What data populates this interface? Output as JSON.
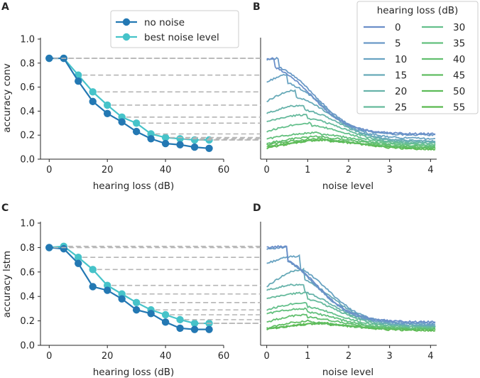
{
  "chart_data": [
    {
      "type": "line",
      "panel": "A",
      "xlabel": "hearing loss (dB)",
      "ylabel": "accuracy conv",
      "xlim": [
        -3,
        60
      ],
      "ylim": [
        0,
        1.0
      ],
      "xticks": [
        0,
        20,
        40,
        60
      ],
      "yticks": [
        0.0,
        0.2,
        0.4,
        0.6,
        0.8,
        1.0
      ],
      "x": [
        0,
        5,
        10,
        15,
        20,
        25,
        30,
        35,
        40,
        45,
        50,
        55
      ],
      "series": [
        {
          "name": "no noise",
          "color": "#2378b3",
          "values": [
            0.84,
            0.84,
            0.65,
            0.48,
            0.38,
            0.31,
            0.23,
            0.17,
            0.13,
            0.12,
            0.1,
            0.09
          ]
        },
        {
          "name": "best noise level",
          "color": "#46c3c9",
          "values": [
            0.84,
            0.84,
            0.7,
            0.56,
            0.45,
            0.35,
            0.3,
            0.21,
            0.18,
            0.17,
            0.16,
            0.16
          ]
        }
      ],
      "legend": {
        "location": "top-right",
        "entries": [
          "no noise",
          "best noise level"
        ]
      }
    },
    {
      "type": "line",
      "panel": "B",
      "xlabel": "noise level",
      "xlim": [
        -0.15,
        4.15
      ],
      "ylim": [
        0,
        1.0
      ],
      "xticks": [
        0,
        1,
        2,
        3,
        4
      ],
      "legend": {
        "title": "hearing loss (dB)",
        "location": "top-right",
        "entries": [
          "0",
          "5",
          "10",
          "15",
          "20",
          "25",
          "30",
          "35",
          "40",
          "45",
          "50",
          "55"
        ]
      },
      "colors": [
        "#6b8fc9",
        "#6a99c6",
        "#69a3c2",
        "#68aab8",
        "#67b3aa",
        "#66ba9c",
        "#65c08c",
        "#63c07d",
        "#62bf6f",
        "#60bd62",
        "#5dbb58",
        "#5ab94f"
      ],
      "curves": [
        {
          "hearing_loss": 0,
          "base": 0.83,
          "peak_at": 0.2,
          "peak": 0.84,
          "end": 0.21
        },
        {
          "hearing_loss": 5,
          "base": 0.83,
          "peak_at": 0.3,
          "peak": 0.84,
          "end": 0.2
        },
        {
          "hearing_loss": 10,
          "base": 0.64,
          "peak_at": 0.5,
          "peak": 0.7,
          "end": 0.17
        },
        {
          "hearing_loss": 15,
          "base": 0.48,
          "peak_at": 0.7,
          "peak": 0.57,
          "end": 0.15
        },
        {
          "hearing_loss": 20,
          "base": 0.38,
          "peak_at": 0.9,
          "peak": 0.45,
          "end": 0.14
        },
        {
          "hearing_loss": 25,
          "base": 0.31,
          "peak_at": 1.0,
          "peak": 0.37,
          "end": 0.13
        },
        {
          "hearing_loss": 30,
          "base": 0.23,
          "peak_at": 1.1,
          "peak": 0.3,
          "end": 0.12
        },
        {
          "hearing_loss": 35,
          "base": 0.17,
          "peak_at": 1.3,
          "peak": 0.22,
          "end": 0.11
        },
        {
          "hearing_loss": 40,
          "base": 0.13,
          "peak_at": 1.4,
          "peak": 0.19,
          "end": 0.1
        },
        {
          "hearing_loss": 45,
          "base": 0.12,
          "peak_at": 1.4,
          "peak": 0.17,
          "end": 0.09
        },
        {
          "hearing_loss": 50,
          "base": 0.1,
          "peak_at": 1.5,
          "peak": 0.16,
          "end": 0.09
        },
        {
          "hearing_loss": 55,
          "base": 0.09,
          "peak_at": 1.5,
          "peak": 0.16,
          "end": 0.08
        }
      ]
    },
    {
      "type": "line",
      "panel": "C",
      "xlabel": "hearing loss (dB)",
      "ylabel": "accuracy lstm",
      "xlim": [
        -3,
        60
      ],
      "ylim": [
        0,
        1.0
      ],
      "xticks": [
        0,
        20,
        40,
        60
      ],
      "yticks": [
        0.0,
        0.2,
        0.4,
        0.6,
        0.8,
        1.0
      ],
      "x": [
        0,
        5,
        10,
        15,
        20,
        25,
        30,
        35,
        40,
        45,
        50,
        55
      ],
      "series": [
        {
          "name": "no noise",
          "color": "#2378b3",
          "values": [
            0.8,
            0.79,
            0.67,
            0.48,
            0.45,
            0.38,
            0.29,
            0.26,
            0.19,
            0.14,
            0.13,
            0.13
          ]
        },
        {
          "name": "best noise level",
          "color": "#46c3c9",
          "values": [
            0.8,
            0.81,
            0.72,
            0.62,
            0.49,
            0.42,
            0.35,
            0.29,
            0.25,
            0.21,
            0.18,
            0.18
          ]
        }
      ]
    },
    {
      "type": "line",
      "panel": "D",
      "xlabel": "noise level",
      "xlim": [
        -0.15,
        4.15
      ],
      "ylim": [
        0,
        1.0
      ],
      "xticks": [
        0,
        1,
        2,
        3,
        4
      ],
      "colors": [
        "#6b8fc9",
        "#6a99c6",
        "#69a3c2",
        "#68aab8",
        "#67b3aa",
        "#66ba9c",
        "#65c08c",
        "#63c07d",
        "#62bf6f",
        "#60bd62",
        "#5dbb58",
        "#5ab94f"
      ],
      "curves": [
        {
          "hearing_loss": 0,
          "base": 0.8,
          "peak_at": 0.5,
          "peak": 0.81,
          "end": 0.19
        },
        {
          "hearing_loss": 5,
          "base": 0.79,
          "peak_at": 0.5,
          "peak": 0.8,
          "end": 0.18
        },
        {
          "hearing_loss": 10,
          "base": 0.67,
          "peak_at": 0.8,
          "peak": 0.73,
          "end": 0.17
        },
        {
          "hearing_loss": 15,
          "base": 0.48,
          "peak_at": 0.9,
          "peak": 0.62,
          "end": 0.16
        },
        {
          "hearing_loss": 20,
          "base": 0.45,
          "peak_at": 0.9,
          "peak": 0.5,
          "end": 0.16
        },
        {
          "hearing_loss": 25,
          "base": 0.38,
          "peak_at": 1.0,
          "peak": 0.43,
          "end": 0.15
        },
        {
          "hearing_loss": 30,
          "base": 0.29,
          "peak_at": 1.0,
          "peak": 0.35,
          "end": 0.15
        },
        {
          "hearing_loss": 35,
          "base": 0.26,
          "peak_at": 1.0,
          "peak": 0.3,
          "end": 0.14
        },
        {
          "hearing_loss": 40,
          "base": 0.19,
          "peak_at": 1.0,
          "peak": 0.25,
          "end": 0.14
        },
        {
          "hearing_loss": 45,
          "base": 0.14,
          "peak_at": 1.1,
          "peak": 0.2,
          "end": 0.13
        },
        {
          "hearing_loss": 50,
          "base": 0.13,
          "peak_at": 1.5,
          "peak": 0.18,
          "end": 0.13
        },
        {
          "hearing_loss": 55,
          "base": 0.13,
          "peak_at": 1.5,
          "peak": 0.18,
          "end": 0.12
        }
      ]
    }
  ]
}
